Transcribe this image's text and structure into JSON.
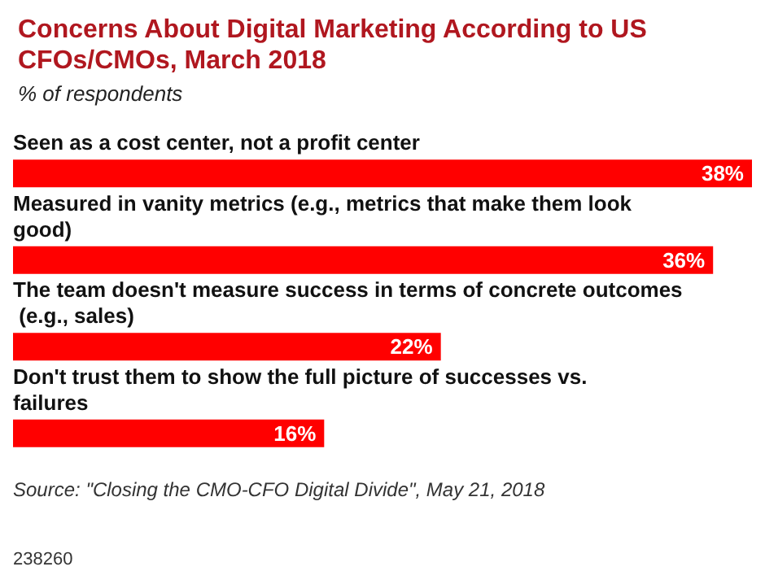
{
  "chart_data": {
    "type": "bar",
    "orientation": "horizontal",
    "title": "Concerns About Digital Marketing According to US CFOs/CMOs, March 2018",
    "subtitle": "% of respondents",
    "categories": [
      "Seen as a cost center, not a profit center",
      "Measured in vanity metrics (e.g., metrics that make them look good)",
      "The team doesn't measure success in terms of concrete outcomes (e.g., sales)",
      "Don't trust them to show the full picture of successes vs. failures"
    ],
    "values": [
      38,
      36,
      22,
      16
    ],
    "value_labels": [
      "38%",
      "36%",
      "22%",
      "16%"
    ],
    "color": "#ff0000",
    "annotations": [
      "Source: \"Closing the CMO-CFO Digital Divide\", May 21, 2018",
      "238260"
    ]
  }
}
